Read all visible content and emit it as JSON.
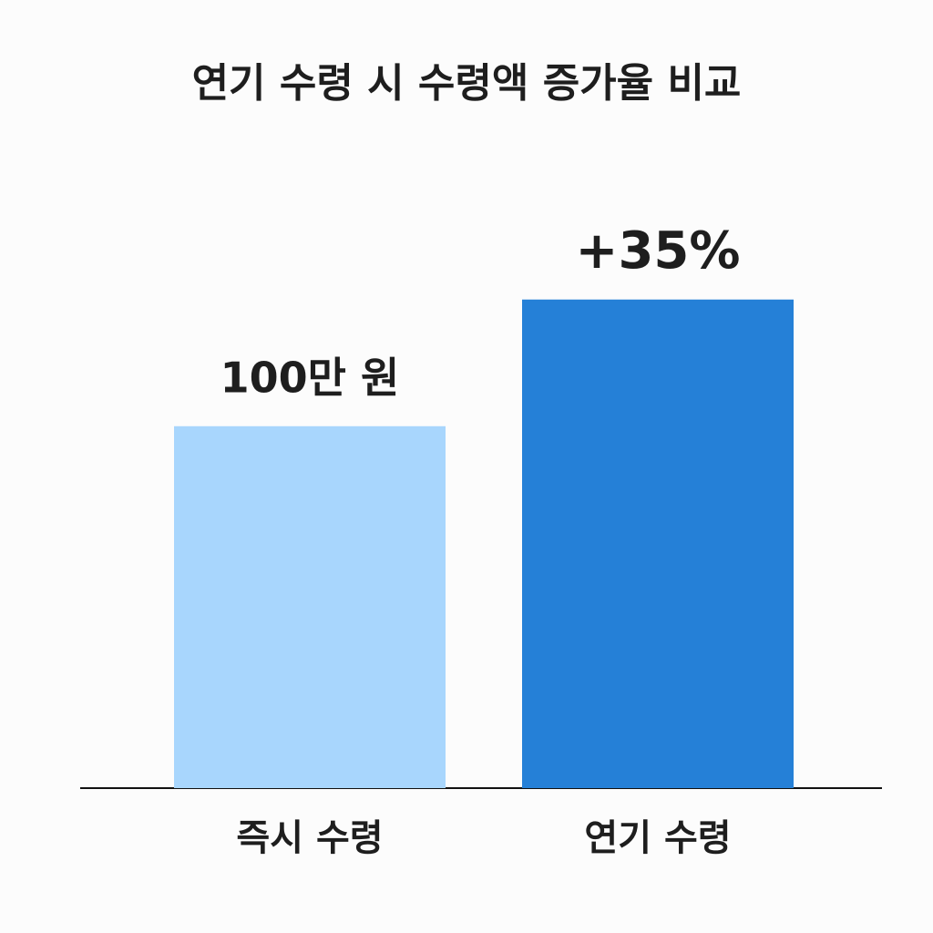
{
  "chart_data": {
    "type": "bar",
    "title": "연기 수령 시 수령액 증가율 비교",
    "categories": [
      "즉시 수령",
      "연기 수령"
    ],
    "values": [
      100,
      135
    ],
    "value_labels": [
      "100만 원",
      "+35%"
    ],
    "colors": [
      "#a8d6fd",
      "#2580d7"
    ],
    "ylim": [
      0,
      180
    ]
  }
}
